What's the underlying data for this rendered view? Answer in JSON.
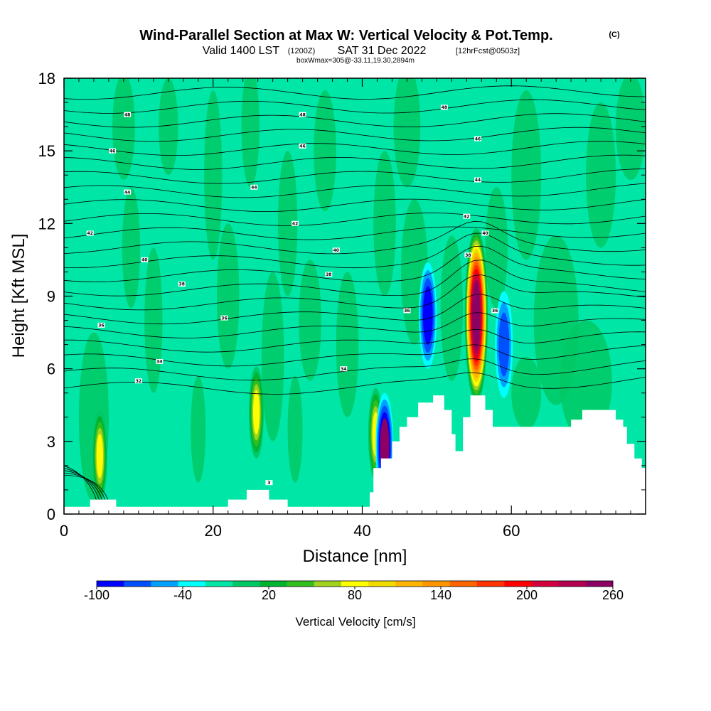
{
  "header": {
    "title": "Wind-Parallel Section at Max W: Vertical Velocity & Pot.Temp.",
    "copyright": "(C)",
    "valid_prefix": "Valid 1400 LST",
    "valid_utc": "(1200Z)",
    "valid_date": "SAT 31 Dec 2022",
    "forecast": "[12hrFcst@0503z]",
    "box_info": "boxWmax=305@-33.11,19.30,2894m"
  },
  "chart_data": {
    "type": "heatmap",
    "xlabel": "Distance [nm]",
    "ylabel": "Height [Kft MSL]",
    "xlim": [
      0,
      78
    ],
    "ylim": [
      0,
      18
    ],
    "x_ticks": [
      "0",
      "20",
      "40",
      "60"
    ],
    "y_ticks": [
      "0",
      "3",
      "6",
      "9",
      "12",
      "15",
      "18"
    ],
    "colorbar": {
      "label": "Vertical Velocity [cm/s]",
      "ticks": [
        "-100",
        "-40",
        "20",
        "80",
        "140",
        "200",
        "260"
      ],
      "levels": [
        -100,
        -80,
        -60,
        -40,
        -20,
        0,
        20,
        40,
        60,
        80,
        100,
        120,
        140,
        160,
        180,
        200,
        220,
        240,
        260
      ],
      "colors": [
        "#0000ff",
        "#0050ff",
        "#00a0ff",
        "#00ffff",
        "#00e6a6",
        "#00c864",
        "#00b432",
        "#32be1e",
        "#a0d21e",
        "#ffff00",
        "#f0dc00",
        "#ffb400",
        "#ff9600",
        "#ff6400",
        "#ff3200",
        "#ff0000",
        "#d2003c",
        "#b40050",
        "#8c0064"
      ]
    },
    "terrain_profile_kft": [
      [
        0,
        0.3
      ],
      [
        3.5,
        0.3
      ],
      [
        3.5,
        0.6
      ],
      [
        7,
        0.6
      ],
      [
        7,
        0.3
      ],
      [
        22,
        0.3
      ],
      [
        22,
        0.6
      ],
      [
        24.5,
        0.6
      ],
      [
        24.5,
        1.0
      ],
      [
        27.5,
        1.0
      ],
      [
        27.5,
        0.6
      ],
      [
        30,
        0.6
      ],
      [
        30,
        0.3
      ],
      [
        41,
        0.3
      ],
      [
        41,
        0.9
      ],
      [
        41.5,
        0.9
      ],
      [
        41.5,
        1.9
      ],
      [
        42.5,
        1.9
      ],
      [
        42.5,
        2.3
      ],
      [
        44,
        2.3
      ],
      [
        44,
        3.0
      ],
      [
        45,
        3.0
      ],
      [
        45,
        3.6
      ],
      [
        46,
        3.6
      ],
      [
        46,
        4.0
      ],
      [
        47.5,
        4.0
      ],
      [
        47.5,
        4.6
      ],
      [
        49.5,
        4.6
      ],
      [
        49.5,
        4.9
      ],
      [
        51,
        4.9
      ],
      [
        51,
        4.3
      ],
      [
        52,
        4.3
      ],
      [
        52,
        3.3
      ],
      [
        52.5,
        3.3
      ],
      [
        52.5,
        2.6
      ],
      [
        53.5,
        2.6
      ],
      [
        53.5,
        4.0
      ],
      [
        54.5,
        4.0
      ],
      [
        54.5,
        4.9
      ],
      [
        56.5,
        4.9
      ],
      [
        56.5,
        4.3
      ],
      [
        57.5,
        4.3
      ],
      [
        57.5,
        3.6
      ],
      [
        68,
        3.6
      ],
      [
        68,
        3.9
      ],
      [
        69.5,
        3.9
      ],
      [
        69.5,
        4.3
      ],
      [
        74,
        4.3
      ],
      [
        74,
        3.9
      ],
      [
        75,
        3.9
      ],
      [
        75,
        3.6
      ],
      [
        75.5,
        3.6
      ],
      [
        75.5,
        2.9
      ],
      [
        76.5,
        2.9
      ],
      [
        76.5,
        2.3
      ],
      [
        77.5,
        2.3
      ],
      [
        77.5,
        1.9
      ],
      [
        78,
        1.9
      ]
    ],
    "updraft_cores": [
      {
        "x": 4.8,
        "y": 2.4,
        "w_max": 80
      },
      {
        "x": 25.8,
        "y": 4.2,
        "w_max": 80
      },
      {
        "x": 41.8,
        "y": 3.3,
        "w_max": 80
      },
      {
        "x": 55.3,
        "y": 8.2,
        "w_max": 260
      }
    ],
    "downdraft_cores": [
      {
        "x": 43.0,
        "y": 2.8,
        "w_min": -100
      },
      {
        "x": 48.8,
        "y": 8.2,
        "w_min": -80
      },
      {
        "x": 59.0,
        "y": 7.0,
        "w_min": -60
      }
    ],
    "theta_contour_labels": [
      {
        "text": "48",
        "x": 8.5,
        "y": 16.5
      },
      {
        "text": "48",
        "x": 32.0,
        "y": 16.5
      },
      {
        "text": "48",
        "x": 51.0,
        "y": 16.8
      },
      {
        "text": "46",
        "x": 6.5,
        "y": 15.0
      },
      {
        "text": "46",
        "x": 32.0,
        "y": 15.2
      },
      {
        "text": "46",
        "x": 55.5,
        "y": 15.5
      },
      {
        "text": "44",
        "x": 8.5,
        "y": 13.3
      },
      {
        "text": "44",
        "x": 25.5,
        "y": 13.5
      },
      {
        "text": "44",
        "x": 55.5,
        "y": 13.8
      },
      {
        "text": "42",
        "x": 3.5,
        "y": 11.6
      },
      {
        "text": "42",
        "x": 31.0,
        "y": 12.0
      },
      {
        "text": "42",
        "x": 54.0,
        "y": 12.3
      },
      {
        "text": "40",
        "x": 10.8,
        "y": 10.5
      },
      {
        "text": "40",
        "x": 36.5,
        "y": 10.9
      },
      {
        "text": "40",
        "x": 56.5,
        "y": 11.6
      },
      {
        "text": "38",
        "x": 15.8,
        "y": 9.5
      },
      {
        "text": "38",
        "x": 35.5,
        "y": 9.9
      },
      {
        "text": "38",
        "x": 54.2,
        "y": 10.7
      },
      {
        "text": "36",
        "x": 5.0,
        "y": 7.8
      },
      {
        "text": "36",
        "x": 21.5,
        "y": 8.1
      },
      {
        "text": "36",
        "x": 46.0,
        "y": 8.4
      },
      {
        "text": "36",
        "x": 57.8,
        "y": 8.4
      },
      {
        "text": "34",
        "x": 12.8,
        "y": 6.3
      },
      {
        "text": "34",
        "x": 37.5,
        "y": 6.0
      },
      {
        "text": "32",
        "x": 10.0,
        "y": 5.5
      },
      {
        "text": "3",
        "x": 27.5,
        "y": 1.3
      }
    ]
  }
}
